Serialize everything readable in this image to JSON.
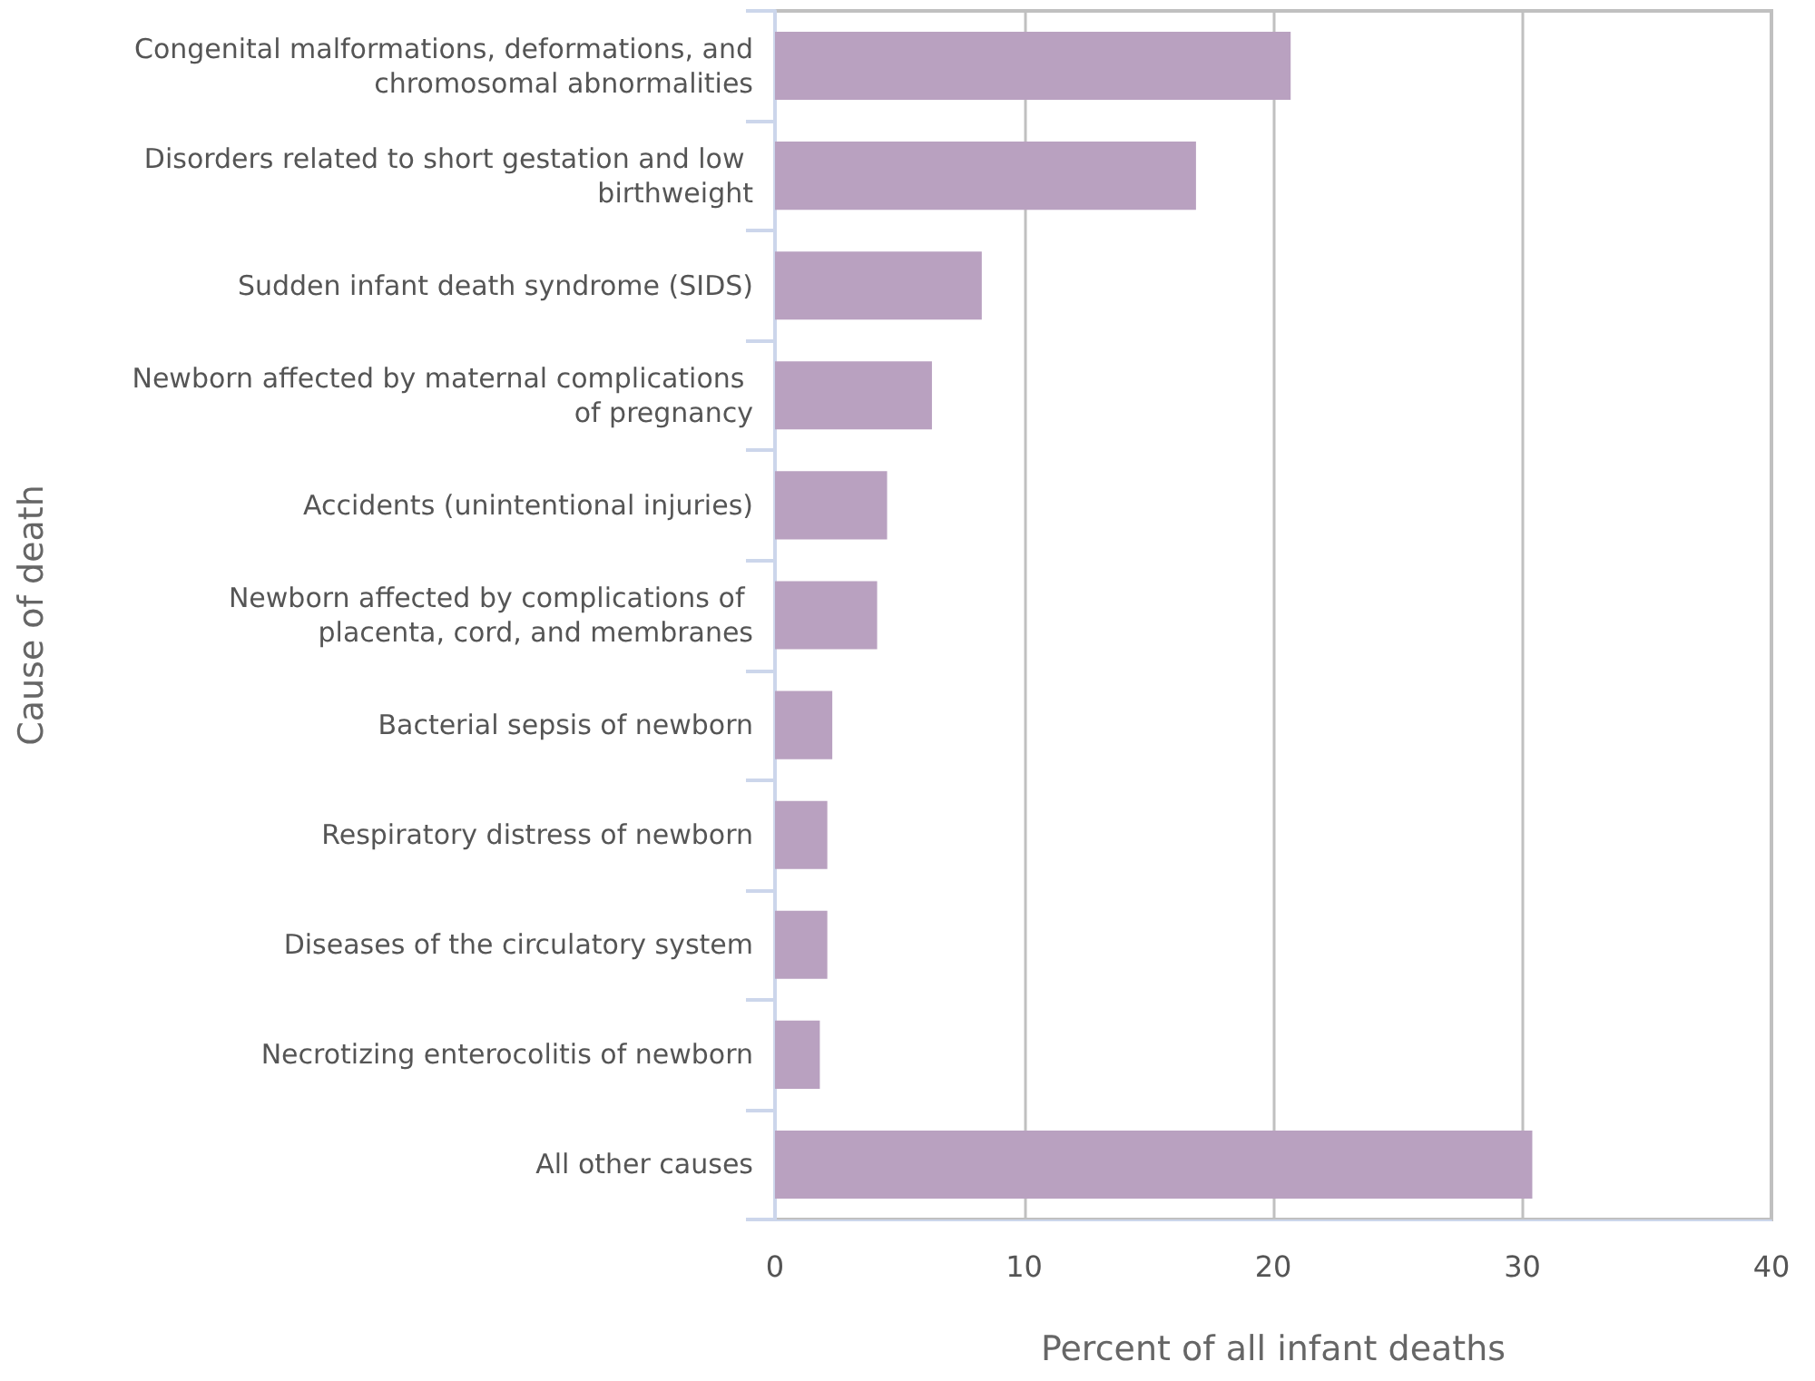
{
  "chart_data": {
    "type": "bar",
    "orientation": "horizontal",
    "xlabel": "Percent of all infant deaths",
    "ylabel": "Cause of death",
    "categories": [
      "Congenital malformations, deformations, and chromosomal abnormalities",
      "Disorders related to short gestation and low birthweight",
      "Sudden infant death syndrome (SIDS)",
      "Newborn affected by maternal complications of pregnancy",
      "Accidents (unintentional injuries)",
      "Newborn affected by complications of placenta, cord, and membranes",
      "Bacterial sepsis of newborn",
      "Respiratory distress of newborn",
      "Diseases of the circulatory system",
      "Necrotizing enterocolitis of newborn",
      "All other causes"
    ],
    "values": [
      20.7,
      16.9,
      8.3,
      6.3,
      4.5,
      4.1,
      2.3,
      2.1,
      2.1,
      1.8,
      30.4
    ],
    "color": "#b9a1c0",
    "xlim": [
      0,
      40
    ],
    "xticks": [
      0,
      10,
      20,
      30,
      40
    ],
    "grid": "x"
  }
}
